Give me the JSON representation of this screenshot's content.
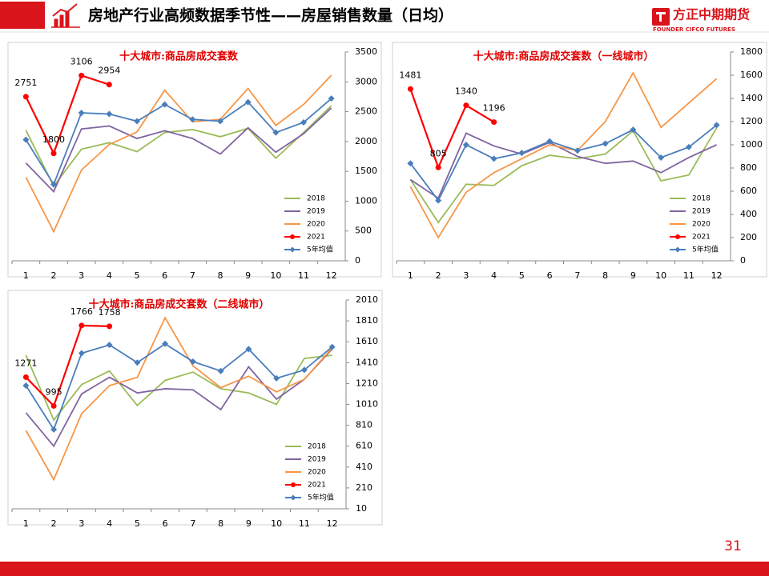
{
  "header": {
    "title": "房地产行业高频数据季节性——房屋销售数量（日均）",
    "logo_name": "方正中期期货",
    "logo_sub": "FOUNDER CIFCO FUTURES"
  },
  "page_number": 31,
  "chart_data": [
    {
      "type": "line",
      "title": "十大城市:商品房成交套数",
      "categories": [
        "1",
        "2",
        "3",
        "4",
        "5",
        "6",
        "7",
        "8",
        "9",
        "10",
        "11",
        "12"
      ],
      "ylim": [
        0,
        3500
      ],
      "yticks": [
        0,
        500,
        1000,
        1500,
        2000,
        2500,
        3000,
        3500
      ],
      "y_axis_side": "right",
      "legend": "lower right",
      "series": [
        {
          "name": "2018",
          "color": "#9bbb59",
          "values": [
            2190,
            1250,
            1870,
            1980,
            1830,
            2150,
            2200,
            2080,
            2220,
            1720,
            2150,
            2600
          ]
        },
        {
          "name": "2019",
          "color": "#8064a2",
          "values": [
            1640,
            1160,
            2210,
            2260,
            2050,
            2180,
            2050,
            1790,
            2230,
            1820,
            2130,
            2560
          ]
        },
        {
          "name": "2020",
          "color": "#f79646",
          "values": [
            1400,
            490,
            1520,
            1950,
            2160,
            2860,
            2330,
            2370,
            2890,
            2270,
            2620,
            3110
          ]
        },
        {
          "name": "2021",
          "color": "#ff0000",
          "marker": "circle",
          "data_labels": true,
          "values": [
            2751,
            1800,
            3106,
            2954,
            null,
            null,
            null,
            null,
            null,
            null,
            null,
            null
          ]
        },
        {
          "name": "5年均值",
          "color": "#4a7ebb",
          "marker": "diamond",
          "values": [
            2030,
            1280,
            2480,
            2460,
            2340,
            2620,
            2370,
            2340,
            2660,
            2150,
            2320,
            2720
          ]
        }
      ]
    },
    {
      "type": "line",
      "title": "十大城市:商品房成交套数（一线城市）",
      "categories": [
        "1",
        "2",
        "3",
        "4",
        "5",
        "6",
        "7",
        "8",
        "9",
        "10",
        "11",
        "12"
      ],
      "ylim": [
        0,
        1800
      ],
      "yticks": [
        0,
        200,
        400,
        600,
        800,
        1000,
        1200,
        1400,
        1600,
        1800
      ],
      "y_axis_side": "right",
      "legend": "lower right",
      "series": [
        {
          "name": "2018",
          "color": "#9bbb59",
          "values": [
            700,
            330,
            660,
            650,
            820,
            910,
            880,
            920,
            1120,
            690,
            740,
            1145
          ]
        },
        {
          "name": "2019",
          "color": "#8064a2",
          "values": [
            700,
            540,
            1100,
            990,
            920,
            1020,
            900,
            840,
            860,
            760,
            890,
            1000
          ]
        },
        {
          "name": "2020",
          "color": "#f79646",
          "values": [
            640,
            200,
            590,
            760,
            880,
            1000,
            950,
            1200,
            1620,
            1150,
            1360,
            1570
          ]
        },
        {
          "name": "2021",
          "color": "#ff0000",
          "marker": "circle",
          "data_labels": true,
          "values": [
            1481,
            805,
            1340,
            1196,
            null,
            null,
            null,
            null,
            null,
            null,
            null,
            null
          ]
        },
        {
          "name": "5年均值",
          "color": "#4a7ebb",
          "marker": "diamond",
          "values": [
            840,
            520,
            1000,
            880,
            930,
            1030,
            950,
            1010,
            1130,
            890,
            980,
            1170
          ]
        }
      ]
    },
    {
      "type": "line",
      "title": "十大城市:商品房成交套数（二线城市）",
      "categories": [
        "1",
        "2",
        "3",
        "4",
        "5",
        "6",
        "7",
        "8",
        "9",
        "10",
        "11",
        "12"
      ],
      "ylim": [
        10,
        2010
      ],
      "yticks": [
        10,
        210,
        410,
        610,
        810,
        1010,
        1210,
        1410,
        1610,
        1810,
        2010
      ],
      "y_axis_side": "right",
      "legend": "lower right",
      "series": [
        {
          "name": "2018",
          "color": "#9bbb59",
          "values": [
            1480,
            860,
            1200,
            1330,
            1000,
            1240,
            1320,
            1160,
            1120,
            1010,
            1450,
            1480
          ]
        },
        {
          "name": "2019",
          "color": "#8064a2",
          "values": [
            930,
            610,
            1110,
            1270,
            1120,
            1160,
            1150,
            960,
            1370,
            1060,
            1250,
            1540
          ]
        },
        {
          "name": "2020",
          "color": "#f79646",
          "values": [
            760,
            290,
            920,
            1190,
            1270,
            1840,
            1380,
            1170,
            1280,
            1130,
            1250,
            1550
          ]
        },
        {
          "name": "2021",
          "color": "#ff0000",
          "marker": "circle",
          "data_labels": true,
          "values": [
            1271,
            995,
            1766,
            1758,
            null,
            null,
            null,
            null,
            null,
            null,
            null,
            null
          ]
        },
        {
          "name": "5年均值",
          "color": "#4a7ebb",
          "marker": "diamond",
          "values": [
            1190,
            770,
            1500,
            1580,
            1410,
            1590,
            1420,
            1330,
            1540,
            1260,
            1340,
            1560
          ]
        }
      ]
    }
  ]
}
